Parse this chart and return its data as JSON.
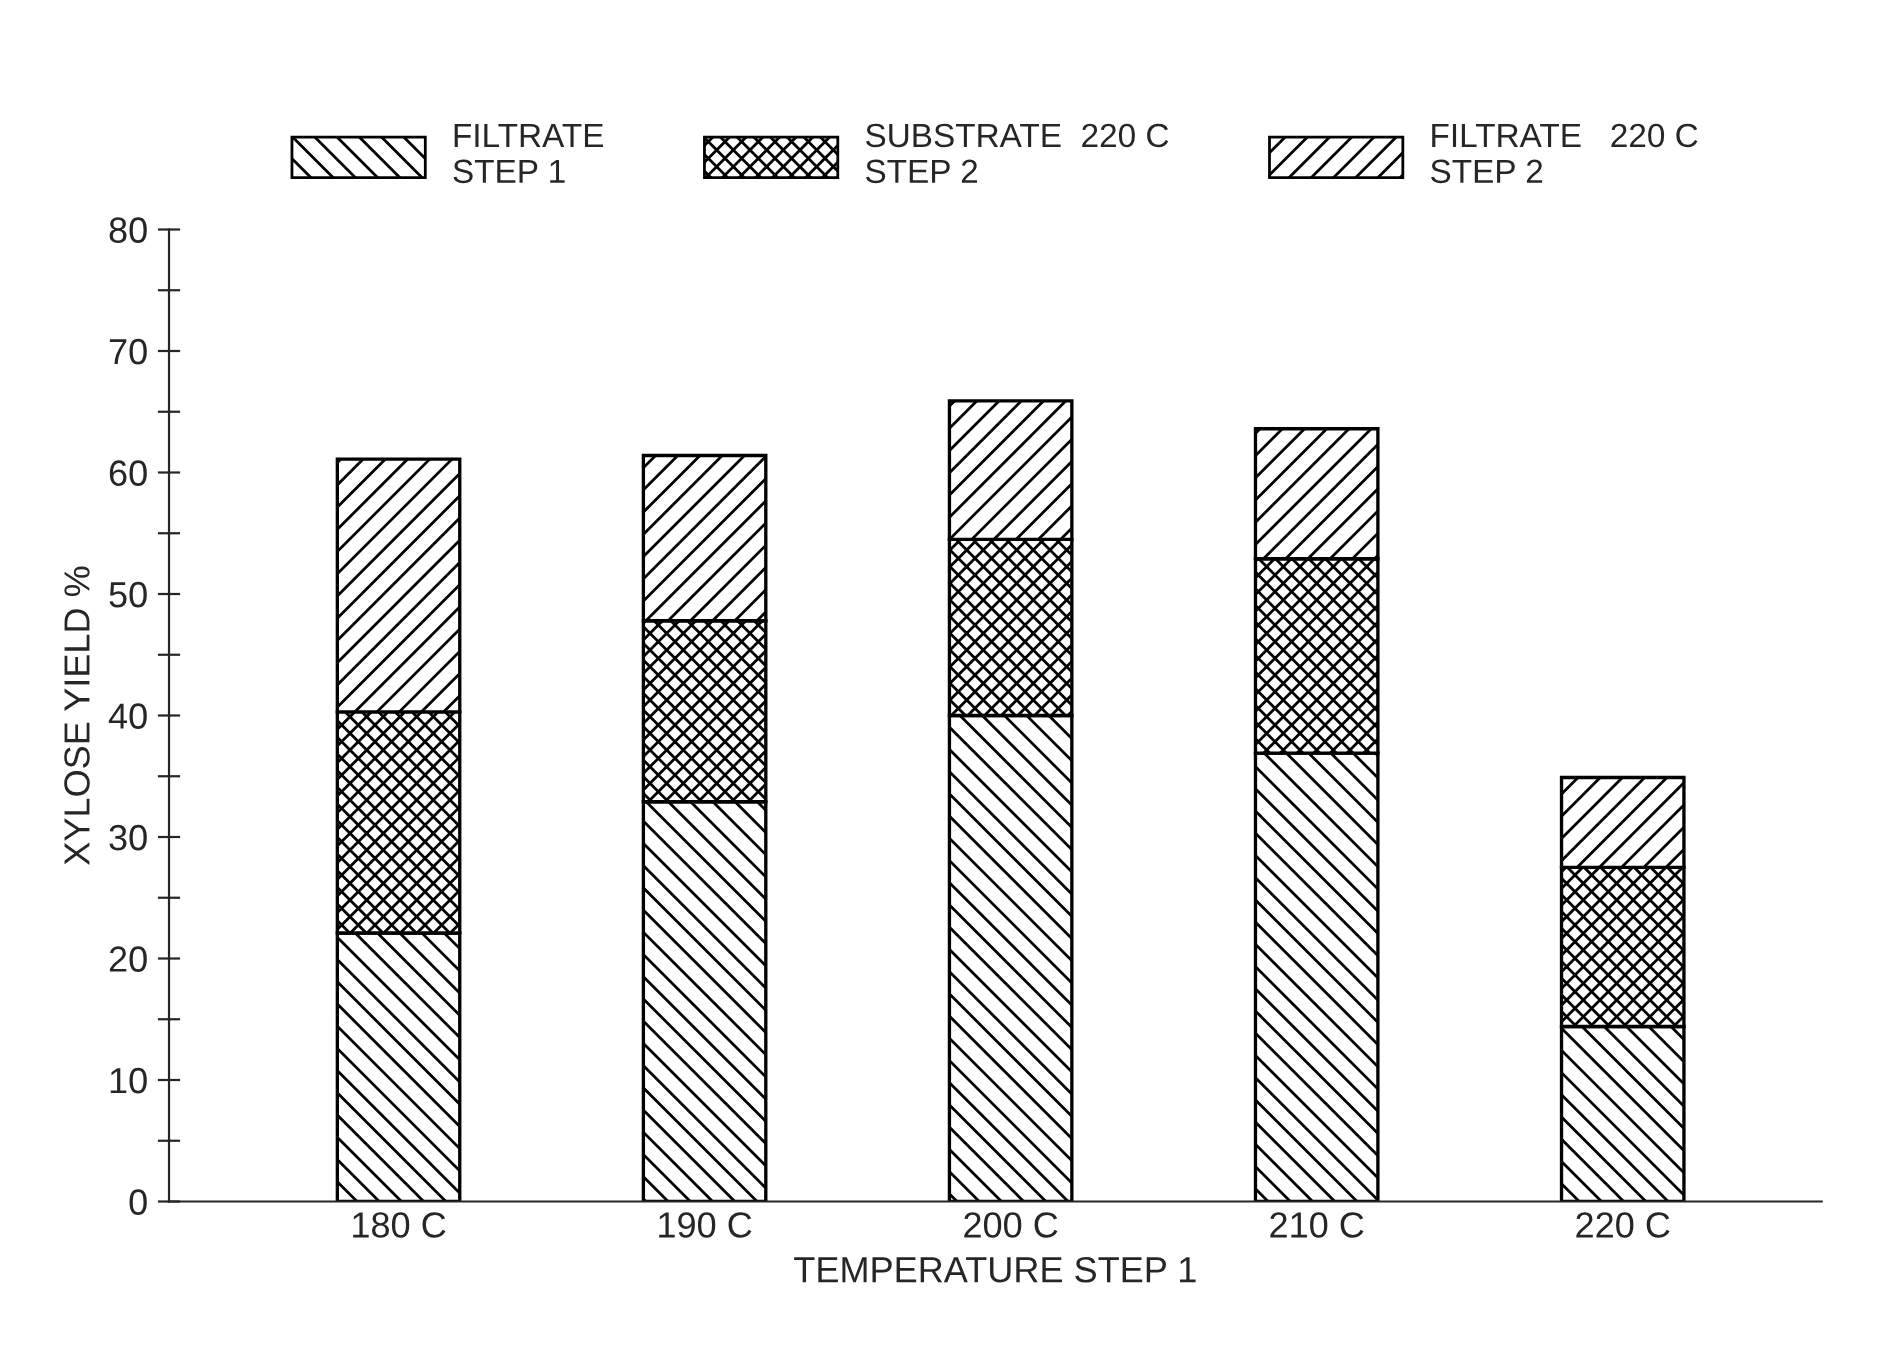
{
  "chart_data": {
    "type": "bar",
    "stacked": true,
    "xlabel": "TEMPERATURE STEP 1",
    "ylabel": "XYLOSE YIELD %",
    "categories": [
      "180 C",
      "190 C",
      "200 C",
      "210 C",
      "220 C"
    ],
    "series": [
      {
        "name": "FILTRATE\nSTEP 1",
        "color": "#000000",
        "values": [
          22.1,
          32.9,
          40.0,
          36.9,
          14.4
        ]
      },
      {
        "name": "SUBSTRATE  220 C\nSTEP 2",
        "color": "#000000",
        "values": [
          18.2,
          14.9,
          14.5,
          16.0,
          13.1
        ]
      },
      {
        "name": "FILTRATE   220 C\nSTEP 2",
        "color": "#000000",
        "values": [
          20.8,
          13.6,
          11.4,
          10.7,
          7.4
        ]
      }
    ],
    "ylim": [
      0,
      80
    ],
    "yticks": [
      0,
      {
        "value": 5,
        "label": null
      },
      10,
      {
        "value": 15,
        "label": null
      },
      20,
      {
        "value": 25,
        "label": null
      },
      30,
      {
        "value": 35,
        "label": null
      },
      40,
      {
        "value": 45,
        "label": null
      },
      50,
      {
        "value": 55,
        "label": null
      },
      60,
      {
        "value": 65,
        "label": null
      },
      70,
      {
        "value": 75,
        "label": null
      },
      80
    ],
    "legend": "top",
    "grid": false
  }
}
